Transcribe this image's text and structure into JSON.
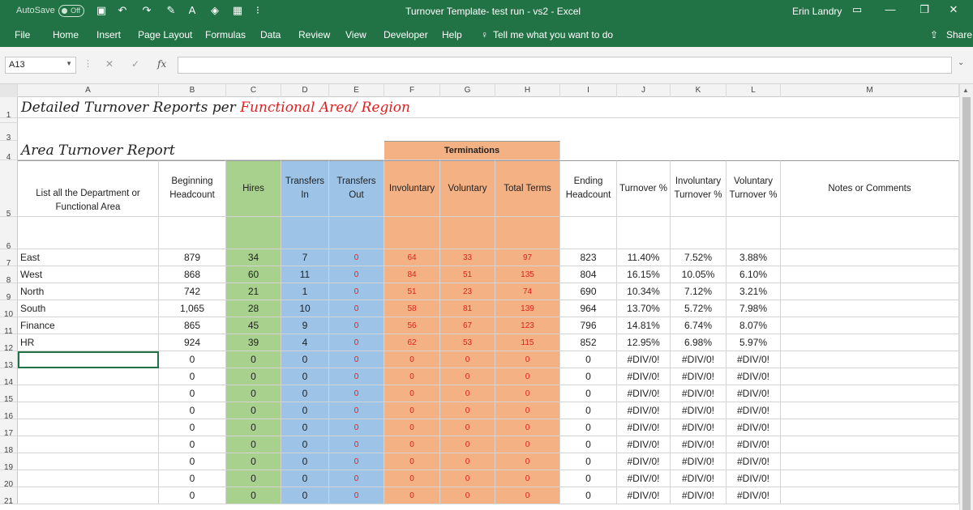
{
  "titlebar": {
    "autosave_label": "AutoSave",
    "autosave_state": "Off",
    "title": "Turnover Template- test run - vs2  -  Excel",
    "user": "Erin Landry"
  },
  "ribbon": {
    "tabs": [
      "File",
      "Home",
      "Insert",
      "Page Layout",
      "Formulas",
      "Data",
      "Review",
      "View",
      "Developer",
      "Help"
    ],
    "tell_me": "Tell me what you want to do",
    "share": "Share"
  },
  "formula_bar": {
    "name_box": "A13",
    "fx_label": "fx",
    "formula": ""
  },
  "columns": [
    "A",
    "B",
    "C",
    "D",
    "E",
    "F",
    "G",
    "H",
    "I",
    "J",
    "K",
    "L",
    "M"
  ],
  "sheet": {
    "title_black": "Detailed Turnover Reports per ",
    "title_red": "Functional Area/ Region",
    "subtitle": "Area Turnover Report",
    "terminations_label": "Terminations",
    "headers": {
      "a": "List all the Department or Functional Area",
      "b": "Beginning Headcount",
      "c": "Hires",
      "d": "Transfers In",
      "e": "Transfers Out",
      "f": "Involuntary",
      "g": "Voluntary",
      "h": "Total Terms",
      "i": "Ending Headcount",
      "j": "Turnover %",
      "k": "Involuntary Turnover %",
      "l": "Voluntary Turnover %",
      "m": "Notes or Comments"
    },
    "rows": [
      {
        "row": "7",
        "area": "East",
        "b": "879",
        "c": "34",
        "d": "7",
        "e": "0",
        "f": "64",
        "g": "33",
        "h": "97",
        "i": "823",
        "j": "11.40%",
        "k": "7.52%",
        "l": "3.88%"
      },
      {
        "row": "8",
        "area": "West",
        "b": "868",
        "c": "60",
        "d": "11",
        "e": "0",
        "f": "84",
        "g": "51",
        "h": "135",
        "i": "804",
        "j": "16.15%",
        "k": "10.05%",
        "l": "6.10%"
      },
      {
        "row": "9",
        "area": "North",
        "b": "742",
        "c": "21",
        "d": "1",
        "e": "0",
        "f": "51",
        "g": "23",
        "h": "74",
        "i": "690",
        "j": "10.34%",
        "k": "7.12%",
        "l": "3.21%"
      },
      {
        "row": "10",
        "area": "South",
        "b": "1,065",
        "c": "28",
        "d": "10",
        "e": "0",
        "f": "58",
        "g": "81",
        "h": "139",
        "i": "964",
        "j": "13.70%",
        "k": "5.72%",
        "l": "7.98%"
      },
      {
        "row": "11",
        "area": "Finance",
        "b": "865",
        "c": "45",
        "d": "9",
        "e": "0",
        "f": "56",
        "g": "67",
        "h": "123",
        "i": "796",
        "j": "14.81%",
        "k": "6.74%",
        "l": "8.07%"
      },
      {
        "row": "12",
        "area": "HR",
        "b": "924",
        "c": "39",
        "d": "4",
        "e": "0",
        "f": "62",
        "g": "53",
        "h": "115",
        "i": "852",
        "j": "12.95%",
        "k": "6.98%",
        "l": "5.97%"
      },
      {
        "row": "13",
        "area": "",
        "b": "0",
        "c": "0",
        "d": "0",
        "e": "0",
        "f": "0",
        "g": "0",
        "h": "0",
        "i": "0",
        "j": "#DIV/0!",
        "k": "#DIV/0!",
        "l": "#DIV/0!"
      },
      {
        "row": "14",
        "area": "",
        "b": "0",
        "c": "0",
        "d": "0",
        "e": "0",
        "f": "0",
        "g": "0",
        "h": "0",
        "i": "0",
        "j": "#DIV/0!",
        "k": "#DIV/0!",
        "l": "#DIV/0!"
      },
      {
        "row": "15",
        "area": "",
        "b": "0",
        "c": "0",
        "d": "0",
        "e": "0",
        "f": "0",
        "g": "0",
        "h": "0",
        "i": "0",
        "j": "#DIV/0!",
        "k": "#DIV/0!",
        "l": "#DIV/0!"
      },
      {
        "row": "16",
        "area": "",
        "b": "0",
        "c": "0",
        "d": "0",
        "e": "0",
        "f": "0",
        "g": "0",
        "h": "0",
        "i": "0",
        "j": "#DIV/0!",
        "k": "#DIV/0!",
        "l": "#DIV/0!"
      },
      {
        "row": "17",
        "area": "",
        "b": "0",
        "c": "0",
        "d": "0",
        "e": "0",
        "f": "0",
        "g": "0",
        "h": "0",
        "i": "0",
        "j": "#DIV/0!",
        "k": "#DIV/0!",
        "l": "#DIV/0!"
      },
      {
        "row": "18",
        "area": "",
        "b": "0",
        "c": "0",
        "d": "0",
        "e": "0",
        "f": "0",
        "g": "0",
        "h": "0",
        "i": "0",
        "j": "#DIV/0!",
        "k": "#DIV/0!",
        "l": "#DIV/0!"
      },
      {
        "row": "19",
        "area": "",
        "b": "0",
        "c": "0",
        "d": "0",
        "e": "0",
        "f": "0",
        "g": "0",
        "h": "0",
        "i": "0",
        "j": "#DIV/0!",
        "k": "#DIV/0!",
        "l": "#DIV/0!"
      },
      {
        "row": "20",
        "area": "",
        "b": "0",
        "c": "0",
        "d": "0",
        "e": "0",
        "f": "0",
        "g": "0",
        "h": "0",
        "i": "0",
        "j": "#DIV/0!",
        "k": "#DIV/0!",
        "l": "#DIV/0!"
      },
      {
        "row": "21",
        "area": "",
        "b": "0",
        "c": "0",
        "d": "0",
        "e": "0",
        "f": "0",
        "g": "0",
        "h": "0",
        "i": "0",
        "j": "#DIV/0!",
        "k": "#DIV/0!",
        "l": "#DIV/0!"
      }
    ],
    "top_row_numbers": [
      "1",
      "3",
      "4",
      "5",
      "6"
    ],
    "colors": {
      "hires": "#a9d18e",
      "transfers": "#9dc3e6",
      "terminations": "#f4b183",
      "title_red": "#e02020",
      "excel_green": "#217346"
    }
  }
}
